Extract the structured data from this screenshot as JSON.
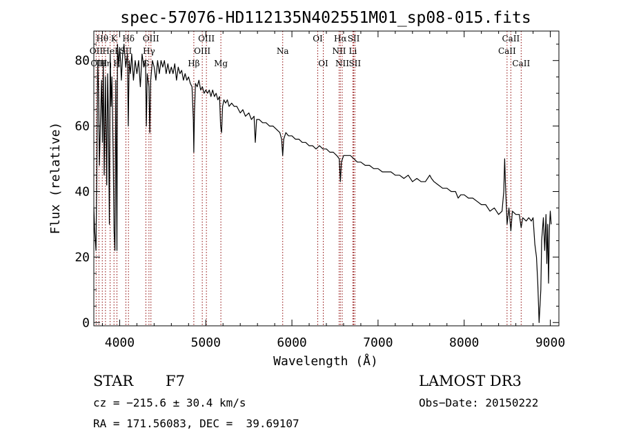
{
  "chart_data": {
    "type": "line",
    "title": "spec-57076-HD112135N402551M01_sp08-015.fits",
    "xlabel": "Wavelength (Å)",
    "ylabel": "Flux (relative)",
    "xlim": [
      3700,
      9100
    ],
    "ylim": [
      -1,
      89
    ],
    "xticks": [
      4000,
      5000,
      6000,
      7000,
      8000,
      9000
    ],
    "yticks": [
      0,
      20,
      40,
      60,
      80
    ],
    "grid": false,
    "line_color": "#000000",
    "marker_color": "#8b0000",
    "spectrum": [
      [
        3700,
        35
      ],
      [
        3710,
        28
      ],
      [
        3725,
        22
      ],
      [
        3735,
        47
      ],
      [
        3745,
        80
      ],
      [
        3755,
        70
      ],
      [
        3765,
        48
      ],
      [
        3775,
        60
      ],
      [
        3790,
        74
      ],
      [
        3800,
        55
      ],
      [
        3810,
        80
      ],
      [
        3820,
        45
      ],
      [
        3835,
        75
      ],
      [
        3850,
        42
      ],
      [
        3860,
        76
      ],
      [
        3870,
        62
      ],
      [
        3880,
        30
      ],
      [
        3890,
        82
      ],
      [
        3900,
        66
      ],
      [
        3910,
        75
      ],
      [
        3925,
        50
      ],
      [
        3935,
        28
      ],
      [
        3945,
        22
      ],
      [
        3955,
        74
      ],
      [
        3968,
        22
      ],
      [
        3975,
        85
      ],
      [
        3990,
        78
      ],
      [
        4000,
        84
      ],
      [
        4010,
        80
      ],
      [
        4020,
        74
      ],
      [
        4035,
        82
      ],
      [
        4050,
        85
      ],
      [
        4070,
        78
      ],
      [
        4090,
        82
      ],
      [
        4100,
        60
      ],
      [
        4110,
        80
      ],
      [
        4125,
        76
      ],
      [
        4140,
        82
      ],
      [
        4160,
        74
      ],
      [
        4180,
        80
      ],
      [
        4200,
        76
      ],
      [
        4220,
        80
      ],
      [
        4240,
        72
      ],
      [
        4260,
        82
      ],
      [
        4280,
        78
      ],
      [
        4300,
        80
      ],
      [
        4310,
        60
      ],
      [
        4320,
        76
      ],
      [
        4340,
        72
      ],
      [
        4350,
        58
      ],
      [
        4360,
        74
      ],
      [
        4380,
        80
      ],
      [
        4400,
        78
      ],
      [
        4420,
        74
      ],
      [
        4440,
        80
      ],
      [
        4460,
        76
      ],
      [
        4480,
        80
      ],
      [
        4500,
        78
      ],
      [
        4520,
        80
      ],
      [
        4540,
        76
      ],
      [
        4560,
        79
      ],
      [
        4580,
        76
      ],
      [
        4600,
        78
      ],
      [
        4620,
        76
      ],
      [
        4640,
        79
      ],
      [
        4660,
        74
      ],
      [
        4680,
        78
      ],
      [
        4700,
        76
      ],
      [
        4720,
        77
      ],
      [
        4740,
        74
      ],
      [
        4760,
        76
      ],
      [
        4780,
        74
      ],
      [
        4800,
        75
      ],
      [
        4820,
        73
      ],
      [
        4840,
        72
      ],
      [
        4855,
        62
      ],
      [
        4861,
        52
      ],
      [
        4868,
        64
      ],
      [
        4880,
        73
      ],
      [
        4900,
        72
      ],
      [
        4920,
        74
      ],
      [
        4940,
        71
      ],
      [
        4960,
        72
      ],
      [
        4980,
        70
      ],
      [
        5000,
        71
      ],
      [
        5020,
        70
      ],
      [
        5040,
        71
      ],
      [
        5060,
        69
      ],
      [
        5080,
        71
      ],
      [
        5100,
        69
      ],
      [
        5120,
        70
      ],
      [
        5140,
        68
      ],
      [
        5160,
        69
      ],
      [
        5172,
        60
      ],
      [
        5183,
        58
      ],
      [
        5195,
        66
      ],
      [
        5210,
        68
      ],
      [
        5230,
        67
      ],
      [
        5250,
        68
      ],
      [
        5270,
        66
      ],
      [
        5300,
        67
      ],
      [
        5330,
        66
      ],
      [
        5360,
        66
      ],
      [
        5400,
        64
      ],
      [
        5430,
        65
      ],
      [
        5460,
        63
      ],
      [
        5500,
        64
      ],
      [
        5530,
        62
      ],
      [
        5560,
        63
      ],
      [
        5575,
        55
      ],
      [
        5590,
        62
      ],
      [
        5620,
        62
      ],
      [
        5660,
        61
      ],
      [
        5700,
        61
      ],
      [
        5740,
        60
      ],
      [
        5780,
        60
      ],
      [
        5820,
        59
      ],
      [
        5860,
        58
      ],
      [
        5880,
        56
      ],
      [
        5893,
        51
      ],
      [
        5905,
        56
      ],
      [
        5930,
        58
      ],
      [
        5960,
        57
      ],
      [
        6000,
        57
      ],
      [
        6040,
        56
      ],
      [
        6080,
        56
      ],
      [
        6120,
        55
      ],
      [
        6160,
        55
      ],
      [
        6200,
        54
      ],
      [
        6240,
        54
      ],
      [
        6280,
        53
      ],
      [
        6320,
        54
      ],
      [
        6360,
        53
      ],
      [
        6400,
        53
      ],
      [
        6440,
        52
      ],
      [
        6480,
        52
      ],
      [
        6520,
        51
      ],
      [
        6550,
        50
      ],
      [
        6563,
        43
      ],
      [
        6575,
        49
      ],
      [
        6600,
        51
      ],
      [
        6640,
        51
      ],
      [
        6680,
        51
      ],
      [
        6720,
        50
      ],
      [
        6760,
        49
      ],
      [
        6800,
        49
      ],
      [
        6850,
        48
      ],
      [
        6900,
        48
      ],
      [
        6950,
        47
      ],
      [
        7000,
        47
      ],
      [
        7050,
        46
      ],
      [
        7100,
        46
      ],
      [
        7150,
        46
      ],
      [
        7200,
        45
      ],
      [
        7250,
        45
      ],
      [
        7300,
        44
      ],
      [
        7350,
        45
      ],
      [
        7400,
        43
      ],
      [
        7450,
        44
      ],
      [
        7500,
        43
      ],
      [
        7550,
        43
      ],
      [
        7600,
        45
      ],
      [
        7620,
        44
      ],
      [
        7650,
        43
      ],
      [
        7700,
        42
      ],
      [
        7750,
        41
      ],
      [
        7800,
        41
      ],
      [
        7850,
        40
      ],
      [
        7900,
        40
      ],
      [
        7930,
        38
      ],
      [
        7960,
        39
      ],
      [
        8000,
        39
      ],
      [
        8050,
        38
      ],
      [
        8100,
        38
      ],
      [
        8150,
        37
      ],
      [
        8200,
        36
      ],
      [
        8250,
        36
      ],
      [
        8300,
        34
      ],
      [
        8350,
        35
      ],
      [
        8400,
        33
      ],
      [
        8440,
        34
      ],
      [
        8460,
        40
      ],
      [
        8470,
        50
      ],
      [
        8480,
        42
      ],
      [
        8498,
        30
      ],
      [
        8520,
        35
      ],
      [
        8542,
        28
      ],
      [
        8560,
        34
      ],
      [
        8600,
        33
      ],
      [
        8640,
        33
      ],
      [
        8662,
        29
      ],
      [
        8680,
        32
      ],
      [
        8720,
        31
      ],
      [
        8750,
        32
      ],
      [
        8780,
        31
      ],
      [
        8800,
        32
      ],
      [
        8820,
        24
      ],
      [
        8840,
        20
      ],
      [
        8855,
        12
      ],
      [
        8870,
        0
      ],
      [
        8890,
        10
      ],
      [
        8900,
        25
      ],
      [
        8920,
        32
      ],
      [
        8935,
        22
      ],
      [
        8950,
        33
      ],
      [
        8960,
        18
      ],
      [
        8970,
        30
      ],
      [
        8980,
        12
      ],
      [
        8990,
        29
      ],
      [
        9000,
        34
      ],
      [
        9010,
        30
      ]
    ],
    "lines": [
      {
        "label": "Hθ",
        "wavelength": 3798,
        "row": 0
      },
      {
        "label": "OII",
        "wavelength": 3727,
        "row": 1
      },
      {
        "label": "OIII",
        "wavelength": 3759,
        "row": 2
      },
      {
        "label": "K",
        "wavelength": 3934,
        "row": 0
      },
      {
        "label": "HeI",
        "wavelength": 3889,
        "row": 1
      },
      {
        "label": "Hη",
        "wavelength": 3835,
        "row": 2
      },
      {
        "label": "H",
        "wavelength": 3968,
        "row": 2
      },
      {
        "label": "Hδ",
        "wavelength": 4102,
        "row": 0
      },
      {
        "label": "SII",
        "wavelength": 4072,
        "row": 1
      },
      {
        "label": "OIII",
        "wavelength": 4363,
        "row": 0
      },
      {
        "label": "Hγ",
        "wavelength": 4340,
        "row": 1
      },
      {
        "label": "G",
        "wavelength": 4304,
        "row": 2
      },
      {
        "label": "Hβ",
        "wavelength": 4861,
        "row": 2
      },
      {
        "label": "OIII",
        "wavelength": 5007,
        "row": 0
      },
      {
        "label": "OIII",
        "wavelength": 4959,
        "row": 1
      },
      {
        "label": "Mg",
        "wavelength": 5175,
        "row": 2
      },
      {
        "label": "Na",
        "wavelength": 5893,
        "row": 1
      },
      {
        "label": "OI",
        "wavelength": 6300,
        "row": 0
      },
      {
        "label": "OI",
        "wavelength": 6364,
        "row": 2
      },
      {
        "label": "Hα",
        "wavelength": 6563,
        "row": 0
      },
      {
        "label": "NII",
        "wavelength": 6548,
        "row": 1
      },
      {
        "label": "NII",
        "wavelength": 6584,
        "row": 2
      },
      {
        "label": "SII",
        "wavelength": 6717,
        "row": 0
      },
      {
        "label": "Li",
        "wavelength": 6708,
        "row": 1
      },
      {
        "label": "SII",
        "wavelength": 6731,
        "row": 2
      },
      {
        "label": "CaII",
        "wavelength": 8542,
        "row": 0
      },
      {
        "label": "CaII",
        "wavelength": 8498,
        "row": 1
      },
      {
        "label": "CaII",
        "wavelength": 8662,
        "row": 2
      }
    ]
  },
  "info": {
    "object_class": "STAR",
    "subclass": "F7",
    "survey": "LAMOST DR3",
    "cz": "cz = −215.6 ± 30.4 km/s",
    "obs_date": "Obs−Date: 20150222",
    "coords": "RA = 171.56083, DEC =  39.69107"
  }
}
